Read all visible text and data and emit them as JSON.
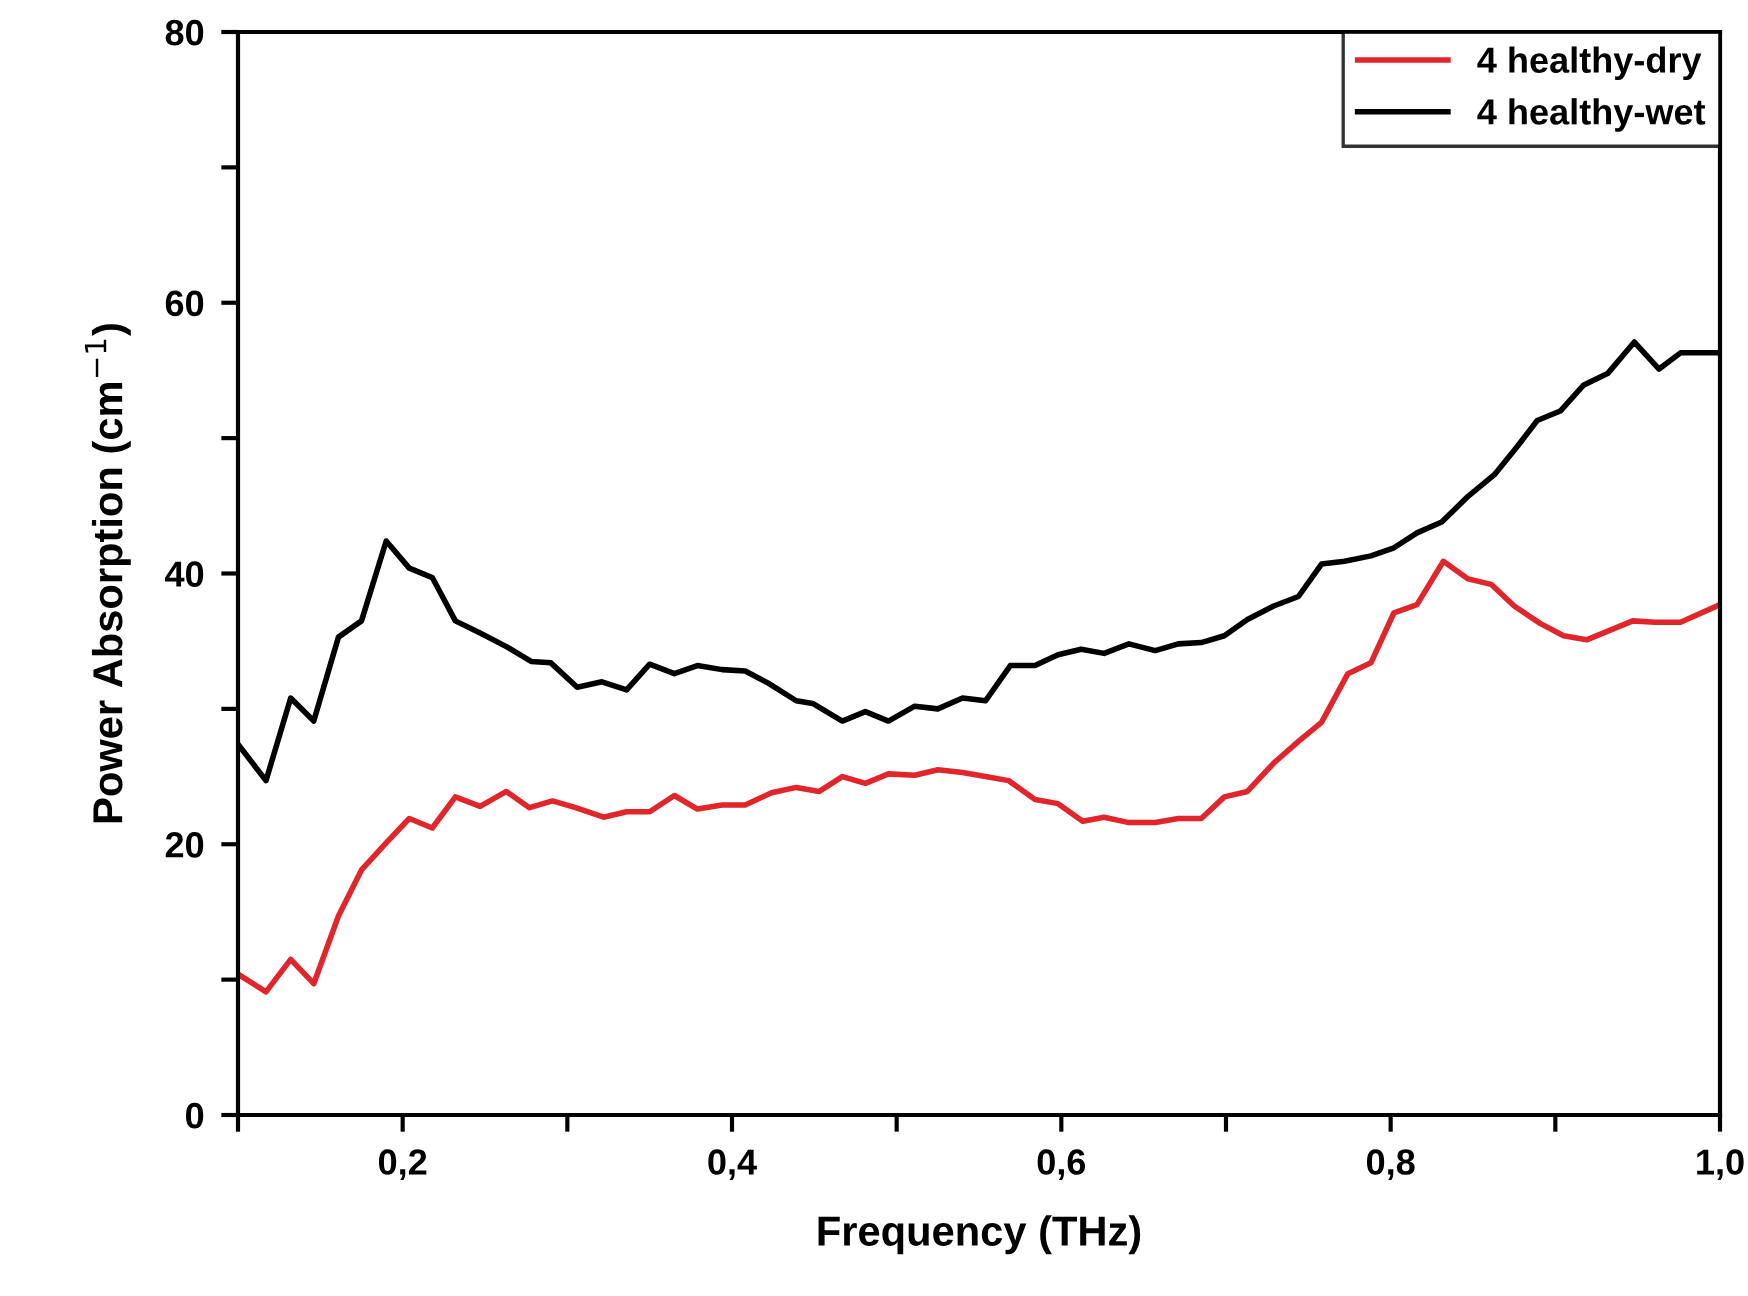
{
  "chart_data": {
    "type": "line",
    "xlabel": "Frequency (THz)",
    "ylabel": "Power Absorption (cm$^{−1}$)",
    "xlim": [
      0.1,
      1.0
    ],
    "ylim": [
      0,
      80
    ],
    "xticks": [
      {
        "value": 0.1,
        "label": null
      },
      {
        "value": 0.2,
        "label": "0,2"
      },
      {
        "value": 0.3,
        "label": null
      },
      {
        "value": 0.4,
        "label": "0,4"
      },
      {
        "value": 0.5,
        "label": null
      },
      {
        "value": 0.6,
        "label": "0,6"
      },
      {
        "value": 0.7,
        "label": null
      },
      {
        "value": 0.8,
        "label": "0,8"
      },
      {
        "value": 0.9,
        "label": null
      },
      {
        "value": 1.0,
        "label": "1,0"
      }
    ],
    "yticks": [
      0,
      {
        "value": 10,
        "label": null
      },
      20,
      {
        "value": 30,
        "label": null
      },
      40,
      {
        "value": 50,
        "label": null
      },
      60,
      {
        "value": 70,
        "label": null
      },
      80
    ],
    "legend": "top right",
    "grid": false,
    "marker": "none",
    "line_style": "solid",
    "series": [
      {
        "name": "4 healthy-dry",
        "color": "#e0262a",
        "x": [
          0.1,
          0.117,
          0.132,
          0.146,
          0.161,
          0.175,
          0.19,
          0.204,
          0.218,
          0.232,
          0.247,
          0.263,
          0.277,
          0.291,
          0.305,
          0.322,
          0.336,
          0.35,
          0.365,
          0.379,
          0.394,
          0.408,
          0.424,
          0.439,
          0.453,
          0.467,
          0.481,
          0.495,
          0.511,
          0.525,
          0.54,
          0.554,
          0.568,
          0.584,
          0.598,
          0.613,
          0.626,
          0.641,
          0.657,
          0.671,
          0.685,
          0.699,
          0.713,
          0.729,
          0.744,
          0.758,
          0.774,
          0.788,
          0.802,
          0.816,
          0.832,
          0.847,
          0.861,
          0.875,
          0.891,
          0.905,
          0.919,
          0.933,
          0.947,
          0.961,
          0.976,
          1.0
        ],
        "values": [
          10.4,
          9.1,
          11.5,
          9.7,
          14.7,
          18.1,
          20.1,
          21.9,
          21.2,
          23.5,
          22.8,
          23.9,
          22.7,
          23.2,
          22.7,
          22.0,
          22.4,
          22.4,
          23.6,
          22.6,
          22.9,
          22.9,
          23.8,
          24.2,
          23.9,
          25.0,
          24.5,
          25.2,
          25.1,
          25.5,
          25.3,
          25.0,
          24.7,
          23.3,
          23.0,
          21.7,
          22.0,
          21.6,
          21.6,
          21.9,
          21.9,
          23.5,
          23.9,
          26.0,
          27.6,
          29.0,
          32.6,
          33.4,
          37.1,
          37.7,
          40.9,
          39.6,
          39.2,
          37.6,
          36.3,
          35.4,
          35.1,
          35.8,
          36.5,
          36.4,
          36.4,
          37.7
        ]
      },
      {
        "name": "4 healthy-wet",
        "color": "#000000",
        "x": [
          0.1,
          0.117,
          0.132,
          0.146,
          0.161,
          0.175,
          0.19,
          0.204,
          0.218,
          0.232,
          0.247,
          0.263,
          0.278,
          0.29,
          0.306,
          0.321,
          0.336,
          0.35,
          0.365,
          0.379,
          0.394,
          0.408,
          0.422,
          0.439,
          0.449,
          0.467,
          0.481,
          0.495,
          0.511,
          0.525,
          0.54,
          0.554,
          0.569,
          0.584,
          0.598,
          0.612,
          0.626,
          0.641,
          0.657,
          0.671,
          0.685,
          0.699,
          0.713,
          0.729,
          0.744,
          0.758,
          0.772,
          0.788,
          0.802,
          0.816,
          0.831,
          0.847,
          0.863,
          0.877,
          0.889,
          0.903,
          0.917,
          0.932,
          0.948,
          0.963,
          0.976,
          1.0
        ],
        "values": [
          27.4,
          24.7,
          30.8,
          29.1,
          35.3,
          36.5,
          42.4,
          40.4,
          39.7,
          36.5,
          35.6,
          34.6,
          33.5,
          33.4,
          31.6,
          32.0,
          31.4,
          33.3,
          32.6,
          33.2,
          32.9,
          32.8,
          31.9,
          30.6,
          30.4,
          29.1,
          29.8,
          29.1,
          30.2,
          30.0,
          30.8,
          30.6,
          33.2,
          33.2,
          34.0,
          34.4,
          34.1,
          34.8,
          34.3,
          34.8,
          34.9,
          35.4,
          36.6,
          37.6,
          38.3,
          40.7,
          40.9,
          41.3,
          41.9,
          43.0,
          43.8,
          45.7,
          47.3,
          49.4,
          51.3,
          52.0,
          53.9,
          54.8,
          57.1,
          55.1,
          56.3,
          56.3
        ]
      }
    ]
  }
}
